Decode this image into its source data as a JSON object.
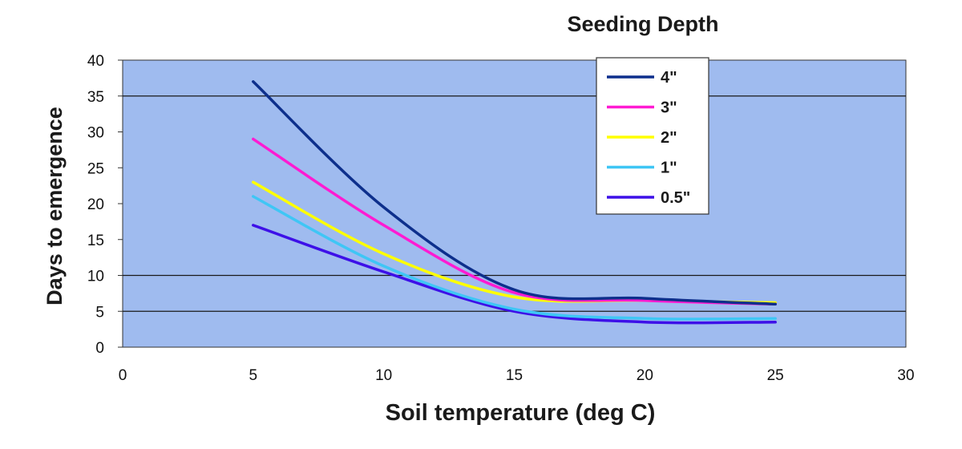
{
  "chart_data": {
    "type": "line",
    "title": "Seeding Depth",
    "xlabel": "Soil temperature (deg C)",
    "ylabel": "Days to emergence",
    "xlim": [
      0,
      30
    ],
    "ylim": [
      0,
      40
    ],
    "x_ticks": [
      0,
      5,
      10,
      15,
      20,
      25,
      30
    ],
    "y_ticks": [
      0,
      5,
      10,
      15,
      20,
      25,
      30,
      35,
      40
    ],
    "gridlines_y": [
      5,
      10,
      35
    ],
    "grid": true,
    "legend_position": "top-right",
    "plot_background": "#9fbbef",
    "x": [
      5,
      10,
      15,
      20,
      25
    ],
    "series": [
      {
        "name": "4\"",
        "color": "#0d2f8c",
        "values": [
          37,
          19.5,
          8,
          6.8,
          6
        ]
      },
      {
        "name": "3\"",
        "color": "#ff1bd2",
        "values": [
          29,
          17,
          7.6,
          6.5,
          6
        ]
      },
      {
        "name": "2\"",
        "color": "#ffff00",
        "values": [
          23,
          13,
          7,
          6.5,
          6.2
        ]
      },
      {
        "name": "1\"",
        "color": "#3fc6f5",
        "values": [
          21,
          11.3,
          5.3,
          4,
          4
        ]
      },
      {
        "name": "0.5\"",
        "color": "#3d10e8",
        "values": [
          17,
          10.5,
          5,
          3.5,
          3.5
        ]
      }
    ]
  }
}
